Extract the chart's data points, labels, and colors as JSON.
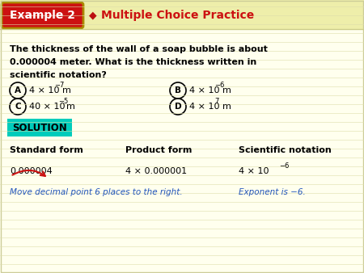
{
  "bg_color": "#ffffee",
  "header_bg": "#cc1111",
  "header_text": "Example 2",
  "header_stripe_color": "#eeeeaa",
  "diamond_color": "#bb1111",
  "subtitle_text": "Multiple Choice Practice",
  "subtitle_color": "#cc1111",
  "question_line1": "The thickness of the wall of a soap bubble is about",
  "question_line2": "0.000004 meter. What is the thickness written in",
  "question_line3": "scientific notation?",
  "solution_bg": "#00ccbb",
  "solution_text": "SOLUTION",
  "col_headers": [
    "Standard form",
    "Product form",
    "Scientific notation"
  ],
  "standard_form": "0.000004",
  "product_form": "4 × 0.000001",
  "sci_notation_base": "4 × 10",
  "sci_notation_exp": "−6",
  "note1": "Move decimal point 6 places to the right.",
  "note2": "Exponent is −6.",
  "note_color": "#2255bb"
}
